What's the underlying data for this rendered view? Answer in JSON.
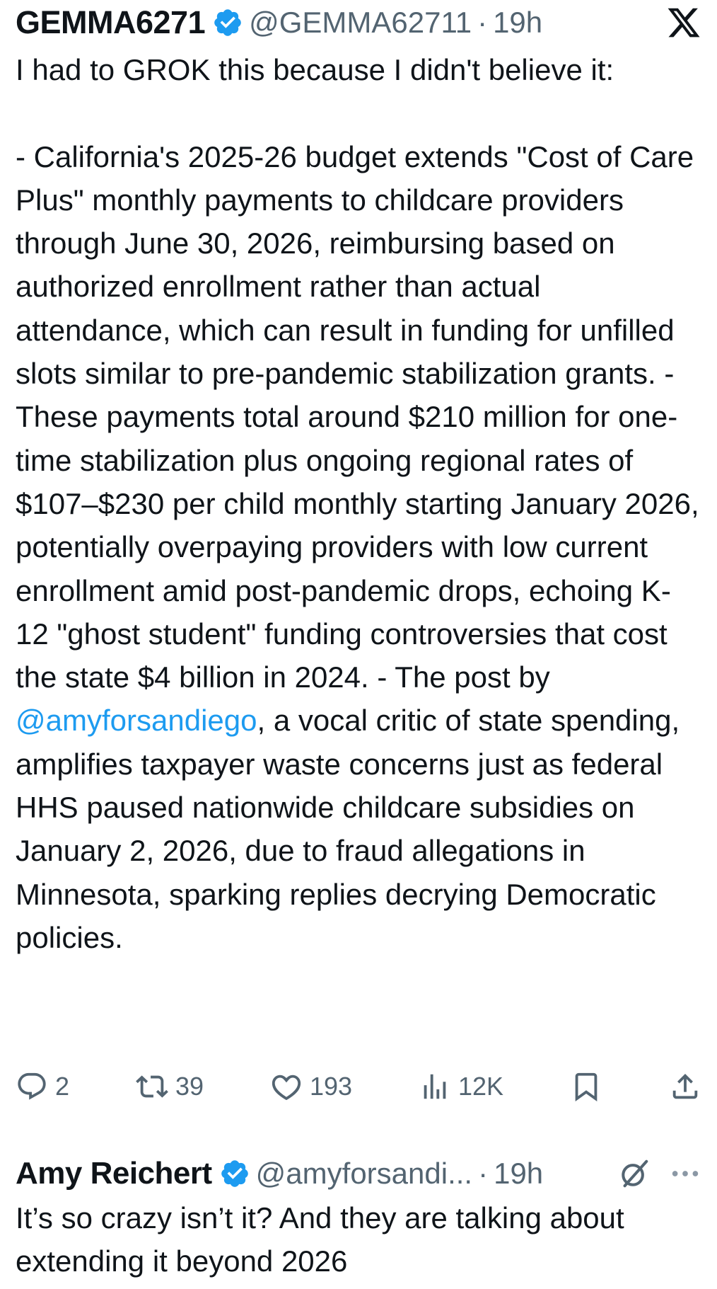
{
  "tweet": {
    "author_name": "GEMMA6271",
    "author_handle": "@GEMMA62711",
    "separator": "·",
    "time": "19h",
    "text_part1": "I had to GROK this because I didn't believe it:\n\n- California's 2025-26 budget extends \"Cost of Care Plus\" monthly payments to childcare providers through June 30, 2026, reimbursing based on authorized enrollment rather than actual attendance, which can result in funding for unfilled slots similar to pre-pandemic stabilization grants. - These payments total around $210 million for one-time stabilization plus ongoing regional rates of $107–$230 per child monthly starting January 2026, potentially overpaying providers with low current enrollment amid post-pandemic drops, echoing K-12 \"ghost student\" funding controversies that cost the state $4 billion in 2024. - The post by ",
    "mention": "@amyforsandiego",
    "text_part2": ", a vocal critic of state spending, amplifies taxpayer waste concerns just as federal HHS paused nationwide childcare subsidies on January 2, 2026, due to fraud allegations in Minnesota, sparking replies decrying Democratic policies.",
    "actions": {
      "replies": "2",
      "reposts": "39",
      "likes": "193",
      "views": "12K"
    }
  },
  "reply": {
    "author_name": "Amy Reichert",
    "author_handle": "@amyforsandi...",
    "separator": "·",
    "time": "19h",
    "text": "It’s so crazy isn’t it? And they are talking about extending it beyond 2026"
  },
  "colors": {
    "text": "#0f1419",
    "secondary": "#536471",
    "link": "#1d9bf0",
    "verified": "#1d9bf0"
  },
  "icons": [
    "verified-badge-icon",
    "x-logo-icon",
    "reply-icon",
    "repost-icon",
    "like-icon",
    "views-icon",
    "bookmark-icon",
    "share-icon",
    "grok-icon",
    "more-icon"
  ]
}
